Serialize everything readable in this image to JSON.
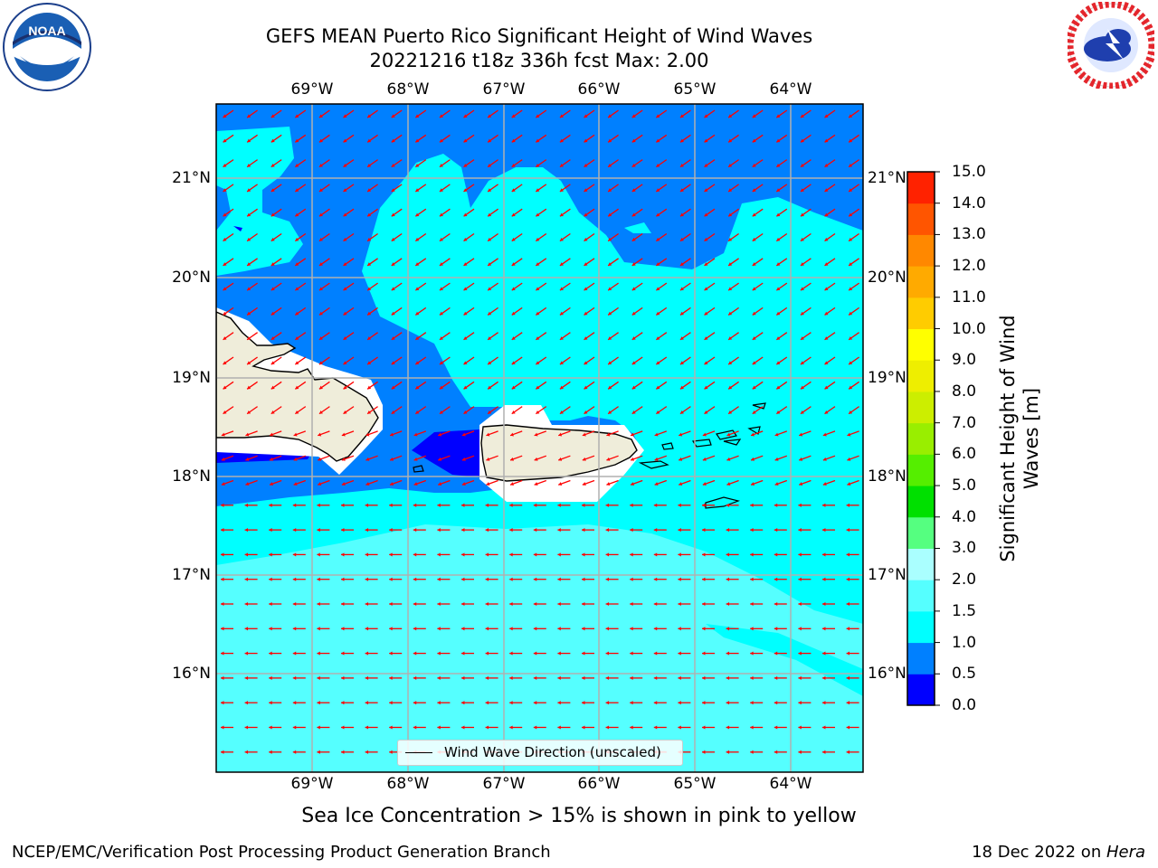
{
  "header": {
    "title_line1": "GEFS MEAN Puerto Rico Significant Height of Wind Waves",
    "title_line2": "20221216 t18z 336h fcst   Max: 2.00"
  },
  "logos": {
    "left": {
      "name": "NOAA",
      "ring_text": "NATIONAL OCEANIC AND ATMOSPHERIC ADMINISTRATION · U.S. DEPARTMENT OF COMMERCE"
    },
    "right": {
      "name": "NATIONAL WEATHER SERVICE"
    }
  },
  "map": {
    "lon_labels": [
      "69°W",
      "68°W",
      "67°W",
      "66°W",
      "65°W",
      "64°W"
    ],
    "lat_labels": [
      "21°N",
      "20°N",
      "19°N",
      "18°N",
      "17°N",
      "16°N"
    ],
    "legend_label": "Wind Wave Direction (unscaled)",
    "arrow_color": "#ff0000",
    "land_color": "#efedda",
    "grid_color": "#b0b0b0"
  },
  "colorbar": {
    "title": "Significant Height of Wind Waves [m]",
    "ticks": [
      "15.0",
      "14.0",
      "13.0",
      "12.0",
      "11.0",
      "10.0",
      "9.0",
      "8.0",
      "7.0",
      "6.0",
      "5.0",
      "4.0",
      "3.0",
      "2.0",
      "1.5",
      "1.0",
      "0.5",
      "0.0"
    ],
    "colors_bottom_to_top": [
      "#0000ff",
      "#0080ff",
      "#00ffff",
      "#55ffff",
      "#aaffff",
      "#55ff80",
      "#00e000",
      "#55ee00",
      "#99ee00",
      "#ccee00",
      "#eeee00",
      "#ffff00",
      "#ffcc00",
      "#ffaa00",
      "#ff8800",
      "#ff5500",
      "#ff2200"
    ]
  },
  "notes": {
    "sea_ice": "Sea Ice Concentration > 15% is shown in pink to yellow"
  },
  "footer": {
    "left": "NCEP/EMC/Verification Post Processing Product Generation Branch",
    "date": "18 Dec 2022 on ",
    "machine": "Hera"
  }
}
